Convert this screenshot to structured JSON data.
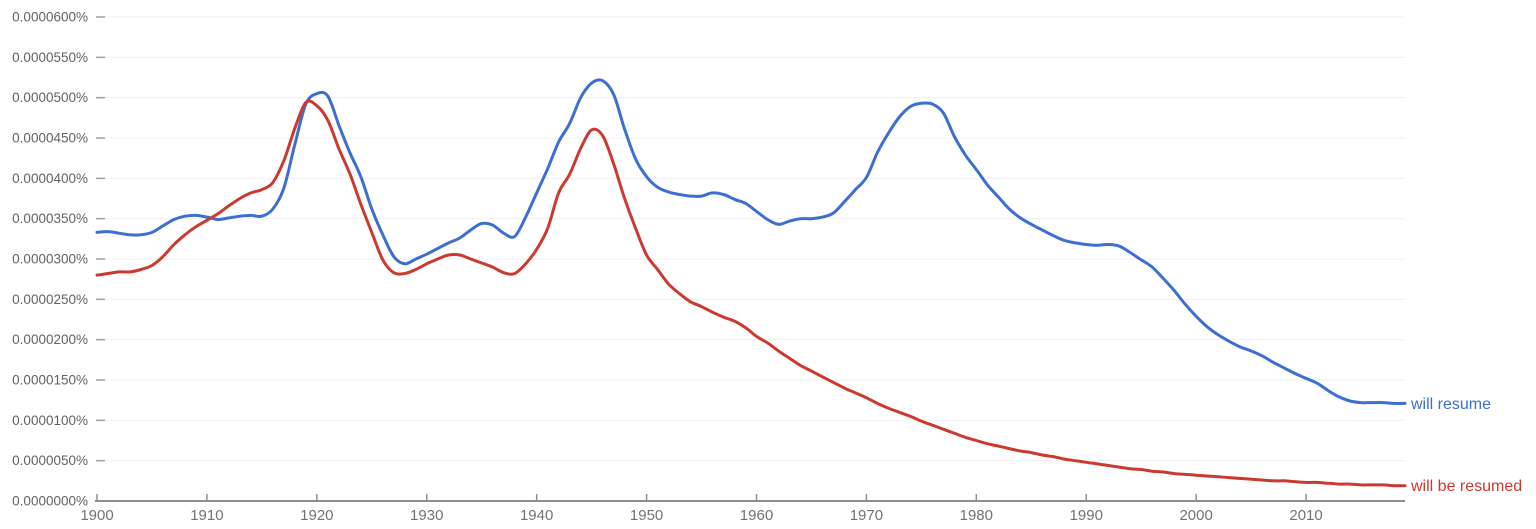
{
  "chart_data": {
    "type": "line",
    "title": "",
    "xlabel": "",
    "ylabel": "",
    "x_start_year": 1900,
    "x_end_year": 2019,
    "x_tick_step": 10,
    "x_tick_labels": [
      "1900",
      "1910",
      "1920",
      "1930",
      "1940",
      "1950",
      "1960",
      "1970",
      "1980",
      "1990",
      "2000",
      "2010"
    ],
    "y_tick_labels": [
      "0.0000600%",
      "0.0000550%",
      "0.0000500%",
      "0.0000450%",
      "0.0000400%",
      "0.0000350%",
      "0.0000300%",
      "0.0000250%",
      "0.0000200%",
      "0.0000150%",
      "0.0000100%",
      "0.0000050%",
      "0.0000000%"
    ],
    "y_tick_values_units": [
      600,
      550,
      500,
      450,
      400,
      350,
      300,
      250,
      200,
      150,
      100,
      50,
      0
    ],
    "ylim_units": [
      0,
      600
    ],
    "value_unit": "1e-7 percent (units; 500 = 0.0000500%)",
    "grid": true,
    "legend_position": "line-end-right",
    "colors": {
      "blue_series": "#3c6fd1",
      "red_series": "#cb3a2e",
      "gridline": "#f0f0f0",
      "axis_line": "#8c8f93",
      "tick_dash": "#9aa0a6",
      "y_label_text": "#5f6368",
      "x_label_text": "#6f7378"
    },
    "series": [
      {
        "name": "will resume",
        "color": "#3c6fd1",
        "values": [
          333,
          334,
          332,
          330,
          330,
          333,
          341,
          349,
          353,
          354,
          352,
          349,
          351,
          353,
          354,
          353,
          362,
          388,
          442,
          492,
          505,
          502,
          466,
          432,
          402,
          362,
          330,
          303,
          294,
          300,
          306,
          313,
          320,
          326,
          336,
          344,
          342,
          332,
          328,
          352,
          382,
          412,
          445,
          468,
          500,
          518,
          521,
          504,
          461,
          424,
          402,
          389,
          383,
          380,
          378,
          378,
          382,
          380,
          374,
          369,
          359,
          349,
          343,
          347,
          350,
          350,
          352,
          357,
          371,
          386,
          401,
          432,
          456,
          476,
          489,
          493,
          492,
          481,
          452,
          429,
          411,
          392,
          377,
          362,
          351,
          343,
          336,
          329,
          323,
          320,
          318,
          317,
          318,
          316,
          308,
          299,
          290,
          276,
          261,
          244,
          229,
          216,
          206,
          198,
          191,
          186,
          180,
          172,
          165,
          158,
          152,
          146,
          137,
          129,
          124,
          122,
          122,
          122,
          121,
          121
        ]
      },
      {
        "name": "will be resumed",
        "color": "#cb3a2e",
        "values": [
          280,
          282,
          284,
          284,
          287,
          292,
          303,
          318,
          330,
          340,
          348,
          356,
          366,
          375,
          382,
          386,
          395,
          422,
          462,
          494,
          490,
          472,
          437,
          406,
          368,
          333,
          299,
          283,
          282,
          287,
          294,
          300,
          305,
          305,
          300,
          295,
          290,
          283,
          282,
          294,
          312,
          338,
          382,
          405,
          437,
          460,
          453,
          418,
          375,
          338,
          305,
          287,
          269,
          257,
          247,
          241,
          234,
          228,
          223,
          215,
          204,
          196,
          186,
          177,
          168,
          161,
          154,
          147,
          140,
          134,
          128,
          121,
          115,
          110,
          105,
          99,
          94,
          89,
          84,
          79,
          75,
          71,
          68,
          65,
          62,
          60,
          57,
          55,
          52,
          50,
          48,
          46,
          44,
          42,
          40,
          39,
          37,
          36,
          34,
          33,
          32,
          31,
          30,
          29,
          28,
          27,
          26,
          25,
          25,
          24,
          23,
          23,
          22,
          21,
          21,
          20,
          20,
          20,
          19,
          19
        ]
      }
    ]
  }
}
